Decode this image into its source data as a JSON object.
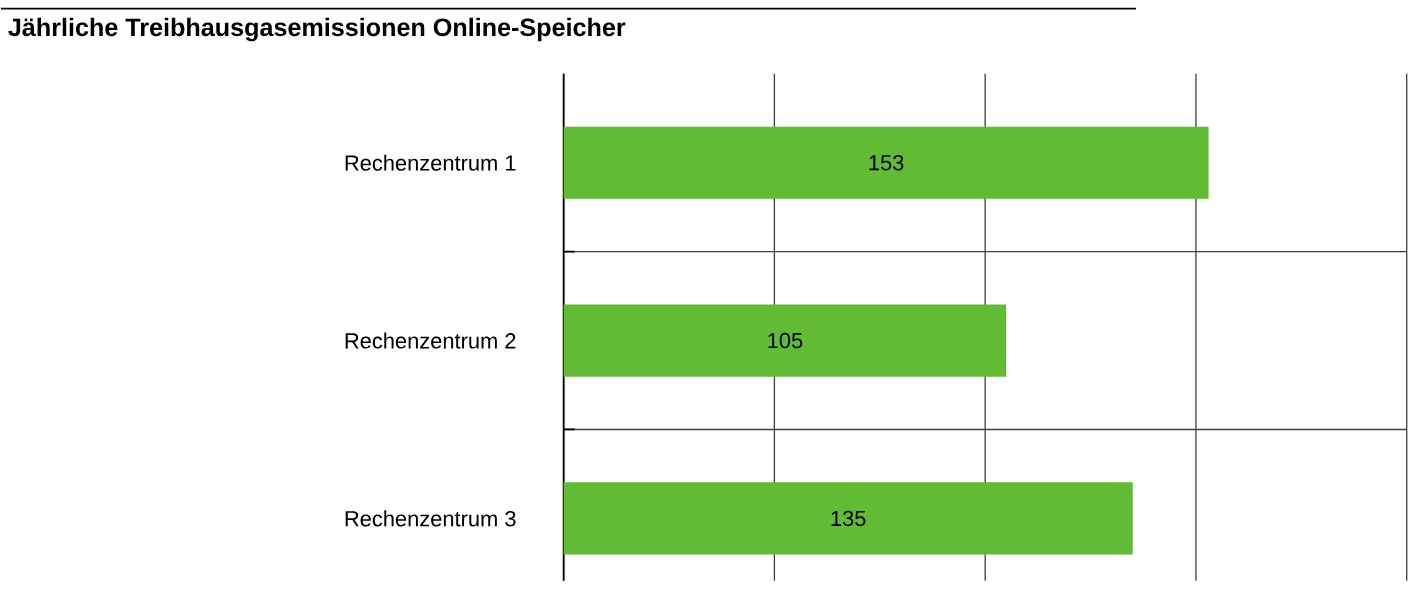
{
  "chart_data": {
    "type": "bar",
    "orientation": "horizontal",
    "title": "Jährliche Treibhausgasemissionen Online-Speicher",
    "categories": [
      "Rechenzentrum 1",
      "Rechenzentrum 2",
      "Rechenzentrum 3"
    ],
    "values": [
      153,
      105,
      135
    ],
    "color": "#62bb35",
    "xlim": [
      0,
      200
    ],
    "xticks": [
      {
        "value": 0,
        "label": null
      },
      {
        "value": 50,
        "label": null
      },
      {
        "value": 100,
        "label": null
      },
      {
        "value": 150,
        "label": null
      },
      {
        "value": 200,
        "label": null
      }
    ],
    "tick_labels": "y",
    "grid": true,
    "data_labels": true
  }
}
